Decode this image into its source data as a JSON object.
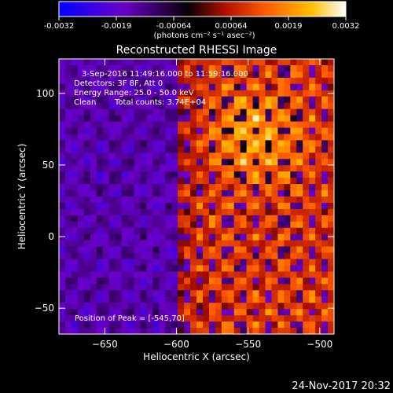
{
  "colorbar": {
    "tick_labels": [
      "-0.0032",
      "-0.0019",
      "-0.00064",
      "0.00064",
      "0.0019",
      "0.0032"
    ],
    "unit_label": "(photons cm⁻² s⁻¹ asec⁻²)",
    "range": [
      -0.0032,
      0.0032
    ],
    "colors": [
      "#0000ff",
      "#6a00c8",
      "#000000",
      "#c81400",
      "#ff6400",
      "#ffc800",
      "#ffffff"
    ]
  },
  "title": "Reconstructed RHESSI Image",
  "annotations": {
    "time_range": "3-Sep-2016 11:49:16.000 to 11:59:16.000",
    "detectors": "Detectors: 3F 8F, Att 0",
    "energy_range": "Energy Range: 25.0 - 50.0 keV",
    "clean": "Clean",
    "total_counts": "Total counts: 3.74E+04",
    "peak": "Position of Peak = [-545,70]"
  },
  "footer_date": "24-Nov-2017 20:32",
  "chart_data": {
    "type": "heatmap",
    "title": "Reconstructed RHESSI Image",
    "xlabel": "Heliocentric X (arcsec)",
    "ylabel": "Heliocentric Y (arcsec)",
    "xlim": [
      -682,
      -490
    ],
    "ylim": [
      -68,
      124
    ],
    "x_ticks": [
      -650,
      -600,
      -550,
      -500
    ],
    "y_ticks": [
      -50,
      0,
      50,
      100
    ],
    "x_tick_labels": [
      "−650",
      "−600",
      "−550",
      "−500"
    ],
    "y_tick_labels": [
      "−50",
      "0",
      "50",
      "100"
    ],
    "peak_position": [
      -545,
      70
    ],
    "value_range": [
      -0.0032,
      0.0032
    ],
    "total_counts": 37400,
    "energy_range_kev": [
      25.0,
      50.0
    ],
    "grid": false
  }
}
